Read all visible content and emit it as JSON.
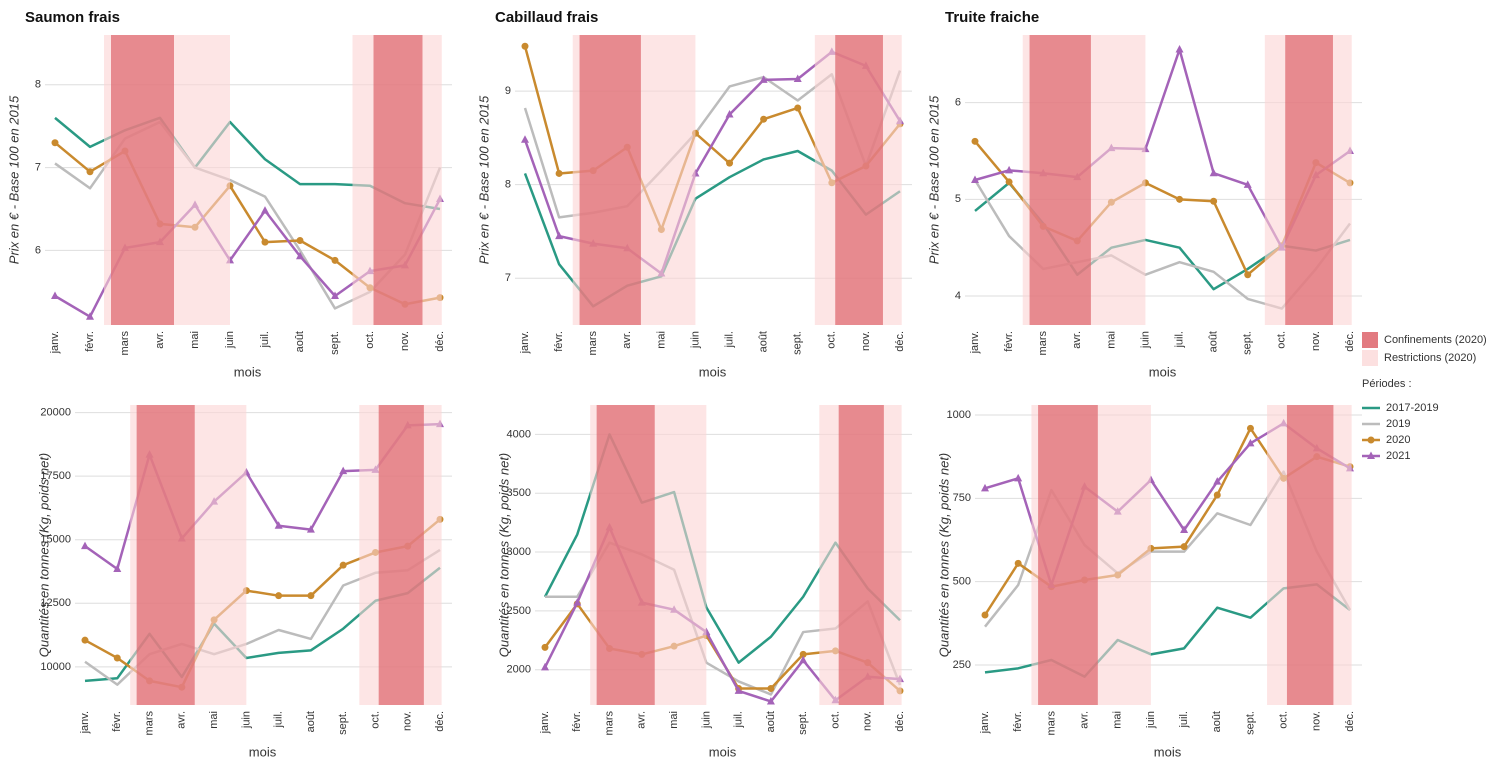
{
  "chart_data": [
    {
      "type": "line",
      "title": "Saumon frais",
      "ylabel": "Prix en € - Base 100 en 2015",
      "xlabel": "mois",
      "categories": [
        "janv.",
        "févr.",
        "mars",
        "avr.",
        "mai",
        "juin",
        "juil.",
        "août",
        "sept.",
        "oct.",
        "nov.",
        "déc."
      ],
      "ylim": [
        5.1,
        8.6
      ],
      "yticks": [
        6,
        7,
        8
      ],
      "grid": true,
      "series": [
        {
          "values": [
            7.6,
            7.25,
            7.45,
            7.6,
            7.0,
            7.55,
            7.1,
            6.8,
            6.8,
            6.78,
            6.57,
            6.5
          ]
        },
        {
          "values": [
            7.05,
            6.75,
            7.35,
            7.55,
            7.0,
            6.85,
            6.65,
            6.0,
            5.3,
            5.5,
            5.95,
            7.0
          ]
        },
        {
          "values": [
            7.3,
            6.95,
            7.2,
            6.32,
            6.28,
            6.78,
            6.1,
            6.12,
            5.88,
            5.55,
            5.35,
            5.43
          ]
        },
        {
          "values": [
            5.45,
            5.2,
            6.03,
            6.1,
            6.55,
            5.88,
            6.48,
            5.93,
            5.45,
            5.75,
            5.82,
            6.62
          ]
        }
      ]
    },
    {
      "type": "line",
      "title": "Cabillaud frais",
      "ylabel": "Prix en € - Base 100 en 2015",
      "xlabel": "mois",
      "categories": [
        "janv.",
        "févr.",
        "mars",
        "avr.",
        "mai",
        "juin",
        "juil.",
        "août",
        "sept.",
        "oct.",
        "nov.",
        "déc."
      ],
      "ylim": [
        6.5,
        9.6
      ],
      "yticks": [
        7,
        8,
        9
      ],
      "grid": true,
      "series": [
        {
          "values": [
            8.12,
            7.15,
            6.7,
            6.92,
            7.02,
            7.85,
            8.08,
            8.27,
            8.36,
            8.15,
            7.68,
            7.93
          ]
        },
        {
          "values": [
            8.82,
            7.65,
            7.7,
            7.77,
            8.15,
            8.55,
            9.05,
            9.15,
            8.9,
            9.18,
            8.2,
            9.22
          ]
        },
        {
          "values": [
            9.48,
            8.12,
            8.15,
            8.4,
            7.52,
            8.55,
            8.23,
            8.7,
            8.82,
            8.02,
            8.2,
            8.65
          ]
        },
        {
          "values": [
            8.48,
            7.45,
            7.37,
            7.32,
            7.05,
            8.12,
            8.75,
            9.12,
            9.13,
            9.42,
            9.27,
            8.68
          ]
        }
      ]
    },
    {
      "type": "line",
      "title": "Truite fraiche",
      "ylabel": "Prix en € - Base 100 en 2015",
      "xlabel": "mois",
      "categories": [
        "janv.",
        "févr.",
        "mars",
        "avr.",
        "mai",
        "juin",
        "juil.",
        "août",
        "sept.",
        "oct.",
        "nov.",
        "déc."
      ],
      "ylim": [
        3.7,
        6.7
      ],
      "yticks": [
        4,
        5,
        6
      ],
      "grid": true,
      "series": [
        {
          "values": [
            4.88,
            5.17,
            4.75,
            4.22,
            4.5,
            4.58,
            4.5,
            4.07,
            4.28,
            4.52,
            4.47,
            4.58
          ]
        },
        {
          "values": [
            5.2,
            4.62,
            4.28,
            4.35,
            4.42,
            4.22,
            4.35,
            4.25,
            3.97,
            3.87,
            4.28,
            4.75
          ]
        },
        {
          "values": [
            5.6,
            5.18,
            4.72,
            4.57,
            4.97,
            5.17,
            5.0,
            4.98,
            4.22,
            4.52,
            5.38,
            5.17
          ]
        },
        {
          "values": [
            5.2,
            5.3,
            5.27,
            5.23,
            5.53,
            5.52,
            6.55,
            5.27,
            5.15,
            4.5,
            5.25,
            5.5
          ]
        }
      ]
    },
    {
      "type": "line",
      "ylabel": "Quantités en tonnes (Kg, poids net)",
      "xlabel": "mois",
      "categories": [
        "janv.",
        "févr.",
        "mars",
        "avr.",
        "mai",
        "juin",
        "juil.",
        "août",
        "sept.",
        "oct.",
        "nov.",
        "déc."
      ],
      "ylim": [
        8500,
        20300
      ],
      "yticks": [
        10000,
        12500,
        15000,
        17500,
        20000
      ],
      "grid": true,
      "series": [
        {
          "values": [
            9450,
            9550,
            11300,
            9600,
            11700,
            10350,
            10550,
            10650,
            11500,
            12600,
            12900,
            13900
          ]
        },
        {
          "values": [
            10200,
            9300,
            10500,
            10900,
            10500,
            10900,
            11450,
            11100,
            13200,
            13700,
            13800,
            14600
          ]
        },
        {
          "values": [
            11050,
            10350,
            9450,
            9200,
            11850,
            13000,
            12800,
            12800,
            14000,
            14500,
            14750,
            15800
          ]
        },
        {
          "values": [
            14750,
            13850,
            18350,
            15050,
            16500,
            17650,
            15550,
            15400,
            17700,
            17750,
            19500,
            19550
          ]
        }
      ]
    },
    {
      "type": "line",
      "ylabel": "Quantités en tonnes (Kg, poids net)",
      "xlabel": "mois",
      "categories": [
        "janv.",
        "févr.",
        "mars",
        "avr.",
        "mai",
        "juin",
        "juil.",
        "août",
        "sept.",
        "oct.",
        "nov.",
        "déc."
      ],
      "ylim": [
        1700,
        4250
      ],
      "yticks": [
        2000,
        2500,
        3000,
        3500,
        4000
      ],
      "grid": true,
      "series": [
        {
          "values": [
            2620,
            3150,
            4000,
            3420,
            3510,
            2530,
            2060,
            2280,
            2620,
            3080,
            2690,
            2420
          ]
        },
        {
          "values": [
            2620,
            2620,
            3080,
            2980,
            2850,
            2060,
            1900,
            1790,
            2320,
            2350,
            2580,
            1870
          ]
        },
        {
          "values": [
            2190,
            2560,
            2180,
            2130,
            2200,
            2290,
            1840,
            1840,
            2130,
            2160,
            2060,
            1820
          ]
        },
        {
          "values": [
            2020,
            2570,
            3210,
            2570,
            2510,
            2320,
            1820,
            1730,
            2080,
            1740,
            1940,
            1920
          ]
        }
      ]
    },
    {
      "type": "line",
      "ylabel": "Quantités en tonnes (Kg, poids net)",
      "xlabel": "mois",
      "categories": [
        "janv.",
        "févr.",
        "mars",
        "avr.",
        "mai",
        "juin",
        "juil.",
        "août",
        "sept.",
        "oct.",
        "nov.",
        "déc."
      ],
      "ylim": [
        130,
        1030
      ],
      "yticks": [
        250,
        500,
        750,
        1000
      ],
      "grid": true,
      "series": [
        {
          "values": [
            228,
            240,
            265,
            215,
            325,
            282,
            300,
            422,
            392,
            480,
            492,
            415
          ]
        },
        {
          "values": [
            365,
            490,
            775,
            610,
            525,
            590,
            590,
            705,
            670,
            830,
            590,
            415
          ]
        },
        {
          "values": [
            400,
            555,
            485,
            505,
            520,
            600,
            605,
            760,
            960,
            810,
            875,
            845
          ]
        },
        {
          "values": [
            780,
            810,
            490,
            785,
            710,
            805,
            655,
            800,
            915,
            975,
            900,
            840
          ]
        }
      ]
    }
  ],
  "legend": {
    "title": "Périodes :",
    "series": [
      {
        "name": "2017-2019",
        "color": "#2a9a84",
        "marker": "none"
      },
      {
        "name": "2019",
        "color": "#bcbcbc",
        "marker": "none"
      },
      {
        "name": "2020",
        "color": "#c98a2e",
        "marker": "circle"
      },
      {
        "name": "2021",
        "color": "#a463b8",
        "marker": "triangle"
      }
    ]
  },
  "periods": [
    {
      "name": "Restrictions (2020)",
      "color": "#fbd3d3",
      "spans": [
        [
          1.4,
          5.0
        ],
        [
          8.5,
          11.05
        ]
      ]
    },
    {
      "name": "Confinements (2020)",
      "color": "#df6b72",
      "spans": [
        [
          1.6,
          3.4
        ],
        [
          9.1,
          10.5
        ]
      ]
    }
  ]
}
